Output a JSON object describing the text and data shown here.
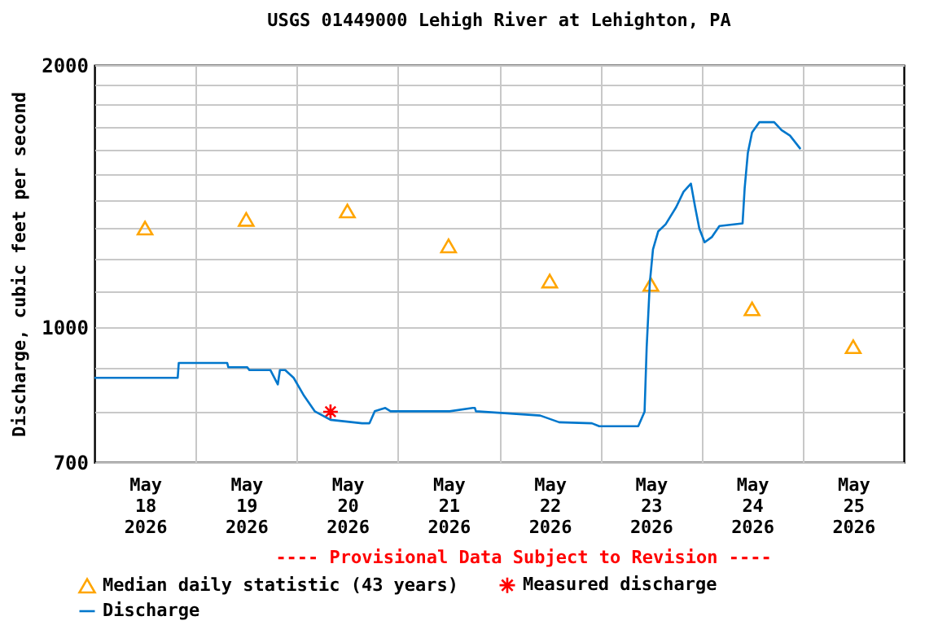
{
  "chart_data": {
    "type": "line",
    "title": "USGS 01449000 Lehigh River at Lehighton, PA",
    "ylabel": "Discharge, cubic feet per second",
    "annotations": [
      "---- Provisional Data Subject to Revision ----"
    ],
    "log": "y",
    "grid": true,
    "legend": "bottom",
    "xlim": [
      "2026-05-18T00:00",
      "2026-05-26T00:00"
    ],
    "xticks": [
      {
        "value": "2026-05-18T12:00",
        "label": "May 18 2026"
      },
      {
        "value": "2026-05-19T00:00",
        "label": null
      },
      {
        "value": "2026-05-19T12:00",
        "label": "May 19 2026"
      },
      {
        "value": "2026-05-20T00:00",
        "label": null
      },
      {
        "value": "2026-05-20T12:00",
        "label": "May 20 2026"
      },
      {
        "value": "2026-05-21T00:00",
        "label": null
      },
      {
        "value": "2026-05-21T12:00",
        "label": "May 21 2026"
      },
      {
        "value": "2026-05-22T00:00",
        "label": null
      },
      {
        "value": "2026-05-22T12:00",
        "label": "May 22 2026"
      },
      {
        "value": "2026-05-23T00:00",
        "label": null
      },
      {
        "value": "2026-05-23T12:00",
        "label": "May 23 2026"
      },
      {
        "value": "2026-05-24T00:00",
        "label": null
      },
      {
        "value": "2026-05-24T12:00",
        "label": "May 24 2026"
      },
      {
        "value": "2026-05-25T00:00",
        "label": null
      },
      {
        "value": "2026-05-25T12:00",
        "label": "May 25 2026"
      }
    ],
    "ylim": [
      700,
      2000
    ],
    "yticks": [
      700,
      {
        "value": 800,
        "label": null
      },
      {
        "value": 900,
        "label": null
      },
      1000,
      {
        "value": 1100,
        "label": null
      },
      {
        "value": 1200,
        "label": null
      },
      {
        "value": 1300,
        "label": null
      },
      {
        "value": 1400,
        "label": null
      },
      {
        "value": 1500,
        "label": null
      },
      {
        "value": 1600,
        "label": null
      },
      {
        "value": 1700,
        "label": null
      },
      {
        "value": 1800,
        "label": null
      },
      {
        "value": 1900,
        "label": null
      },
      2000
    ],
    "series": [
      {
        "name": "Median daily statistic (43 years)",
        "type": "scatter",
        "marker": "triangle",
        "color": "#ffa500",
        "x": [
          "2026-05-18T12:00",
          "2026-05-19T12:00",
          "2026-05-20T12:00",
          "2026-05-21T12:00",
          "2026-05-22T12:00",
          "2026-05-23T12:00",
          "2026-05-24T12:00",
          "2026-05-25T12:00"
        ],
        "values": [
          1300,
          1330,
          1360,
          1240,
          1130,
          1120,
          1050,
          950
        ]
      },
      {
        "name": "Measured discharge",
        "type": "scatter",
        "marker": "cross",
        "color": "#ff0000",
        "x": [
          "2026-05-20T08:00"
        ],
        "values": [
          800
        ]
      },
      {
        "name": "Discharge",
        "marker": "none",
        "color": "#0077cc",
        "x": [
          "2026-05-18T00:00",
          "2026-05-18T18:45",
          "2026-05-18T19:45",
          "2026-05-18T20:00",
          "2026-05-19T07:30",
          "2026-05-19T07:45",
          "2026-05-19T12:15",
          "2026-05-19T12:45",
          "2026-05-19T17:45",
          "2026-05-19T19:30",
          "2026-05-19T20:00",
          "2026-05-19T21:15",
          "2026-05-19T23:15",
          "2026-05-20T01:45",
          "2026-05-20T04:15",
          "2026-05-20T08:00",
          "2026-05-20T15:30",
          "2026-05-20T17:15",
          "2026-05-20T18:30",
          "2026-05-20T21:00",
          "2026-05-20T22:15",
          "2026-05-21T12:15",
          "2026-05-21T17:45",
          "2026-05-21T18:15",
          "2026-05-21T18:30",
          "2026-05-22T09:45",
          "2026-05-22T14:15",
          "2026-05-22T22:00",
          "2026-05-22T23:45",
          "2026-05-23T09:00",
          "2026-05-23T10:30",
          "2026-05-23T11:00",
          "2026-05-23T11:45",
          "2026-05-23T12:30",
          "2026-05-23T13:45",
          "2026-05-23T15:30",
          "2026-05-23T18:00",
          "2026-05-23T19:45",
          "2026-05-23T21:30",
          "2026-05-23T22:30",
          "2026-05-23T23:30",
          "2026-05-24T00:45",
          "2026-05-24T02:30",
          "2026-05-24T04:15",
          "2026-05-24T09:45",
          "2026-05-24T10:15",
          "2026-05-24T11:00",
          "2026-05-24T12:00",
          "2026-05-24T13:45",
          "2026-05-24T17:15",
          "2026-05-24T19:00",
          "2026-05-24T21:00",
          "2026-05-24T23:30"
        ],
        "values": [
          875,
          875,
          875,
          910,
          910,
          900,
          900,
          893,
          893,
          860,
          893,
          893,
          875,
          834,
          801,
          783,
          776,
          776,
          801,
          808,
          801,
          801,
          808,
          808,
          801,
          792,
          778,
          776,
          770,
          770,
          800,
          948,
          1125,
          1229,
          1289,
          1313,
          1374,
          1431,
          1462,
          1374,
          1298,
          1252,
          1270,
          1307,
          1316,
          1445,
          1585,
          1674,
          1720,
          1720,
          1684,
          1660,
          1602
        ]
      }
    ]
  }
}
